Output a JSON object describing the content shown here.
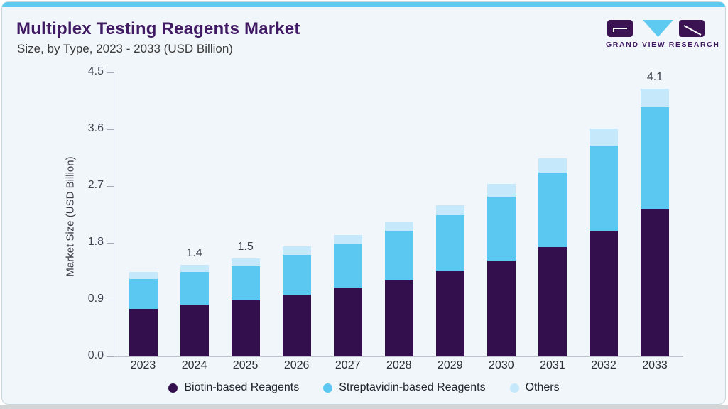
{
  "header": {
    "title": "Multiplex Testing Reagents Market",
    "subtitle": "Size, by Type, 2023 - 2033 (USD Billion)"
  },
  "logo": {
    "text": "GRAND VIEW RESEARCH"
  },
  "colors": {
    "accent_bar": "#5ec9f1",
    "card_background": "#f1f6fa",
    "title_purple": "#401a63",
    "biotin_purple": "#33104d",
    "streptavidin_blue": "#5bc8f2",
    "others_light_blue": "#c5e8fa",
    "axis_gray": "#a6abb5"
  },
  "chart_data": {
    "type": "bar",
    "stacked": true,
    "title": "Multiplex Testing Reagents Market Size, by Type, 2023 - 2033 (USD Billion)",
    "xlabel": "",
    "ylabel": "Market Size (USD Billion)",
    "ylim": [
      0,
      4.5
    ],
    "grid": false,
    "legend_position": "bottom",
    "y_ticks": [
      "0.0",
      "0.9",
      "1.8",
      "2.7",
      "3.6",
      "4.5"
    ],
    "categories": [
      "2023",
      "2024",
      "2025",
      "2026",
      "2027",
      "2028",
      "2029",
      "2030",
      "2031",
      "2032",
      "2033"
    ],
    "series": [
      {
        "name": "Biotin-based Reagents",
        "color": "#33104d",
        "values": [
          0.73,
          0.79,
          0.86,
          0.95,
          1.05,
          1.16,
          1.3,
          1.47,
          1.67,
          1.92,
          2.25
        ]
      },
      {
        "name": "Streptavidin-based Reagents",
        "color": "#5bc8f2",
        "values": [
          0.46,
          0.5,
          0.52,
          0.6,
          0.67,
          0.76,
          0.86,
          0.98,
          1.14,
          1.31,
          1.56
        ]
      },
      {
        "name": "Others",
        "color": "#c5e8fa",
        "values": [
          0.1,
          0.11,
          0.12,
          0.13,
          0.14,
          0.15,
          0.16,
          0.19,
          0.22,
          0.26,
          0.29
        ]
      }
    ],
    "totals": [
      1.29,
      1.4,
      1.5,
      1.68,
      1.86,
      2.07,
      2.32,
      2.64,
      3.03,
      3.49,
      4.1
    ],
    "bar_labels": {
      "2024": "1.4",
      "2025": "1.5",
      "2033": "4.1"
    }
  }
}
